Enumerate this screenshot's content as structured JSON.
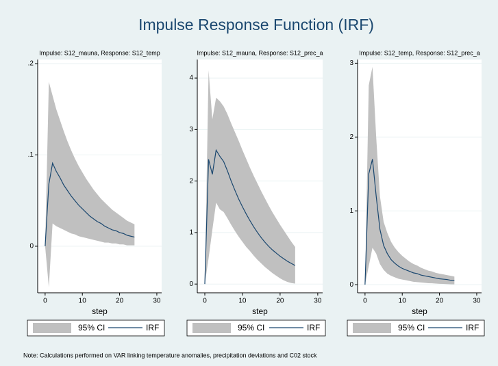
{
  "title": "Impulse Response Function (IRF)",
  "note": "Note: Calculations performed on VAR linking temperature anomalies, precipitation deviations and C02 stock",
  "chart_data": [
    {
      "type": "line",
      "subtitle": "Impulse: S12_mauna, Response: S12_temp",
      "x_label": "step",
      "x": [
        0,
        1,
        2,
        3,
        4,
        5,
        6,
        7,
        8,
        9,
        10,
        11,
        12,
        13,
        14,
        15,
        16,
        17,
        18,
        19,
        20,
        21,
        22,
        23,
        24
      ],
      "xlim": [
        -2,
        31.3
      ],
      "xticks": [
        0,
        10,
        20,
        30
      ],
      "ylim": [
        -0.051,
        0.2045
      ],
      "yticks": [
        0,
        {
          "value": 0.1,
          "label": ".1"
        },
        {
          "value": 0.2,
          "label": ".2"
        }
      ],
      "grid": true,
      "series": [
        {
          "name": "95% CI",
          "color": "#c0c0c0",
          "upper": [
            0,
            0.18,
            0.165,
            0.15,
            0.138,
            0.126,
            0.115,
            0.105,
            0.096,
            0.088,
            0.081,
            0.074,
            0.068,
            0.062,
            0.057,
            0.052,
            0.048,
            0.044,
            0.04,
            0.037,
            0.034,
            0.031,
            0.028,
            0.026,
            0.024
          ],
          "lower": [
            0,
            -0.045,
            0.025,
            0.022,
            0.02,
            0.018,
            0.016,
            0.014,
            0.013,
            0.011,
            0.01,
            0.009,
            0.008,
            0.007,
            0.006,
            0.005,
            0.004,
            0.004,
            0.003,
            0.003,
            0.002,
            0.002,
            0.001,
            0.001,
            0.001
          ]
        },
        {
          "name": "IRF",
          "color": "#1a476f",
          "values": [
            0,
            0.068,
            0.091,
            0.082,
            0.075,
            0.067,
            0.061,
            0.055,
            0.05,
            0.045,
            0.041,
            0.037,
            0.033,
            0.03,
            0.027,
            0.025,
            0.022,
            0.02,
            0.018,
            0.017,
            0.015,
            0.014,
            0.012,
            0.011,
            0.01
          ]
        }
      ]
    },
    {
      "type": "line",
      "subtitle": "Impulse: S12_mauna, Response: S12_prec_a",
      "x_label": "step",
      "x": [
        0,
        1,
        2,
        3,
        4,
        5,
        6,
        7,
        8,
        9,
        10,
        11,
        12,
        13,
        14,
        15,
        16,
        17,
        18,
        19,
        20,
        21,
        22,
        23,
        24
      ],
      "xlim": [
        -2,
        31.3
      ],
      "xticks": [
        0,
        10,
        20,
        30
      ],
      "ylim": [
        -0.17,
        4.36
      ],
      "yticks": [
        0,
        1,
        2,
        3,
        4
      ],
      "grid": true,
      "series": [
        {
          "name": "95% CI",
          "color": "#c0c0c0",
          "upper": [
            0,
            4.15,
            3.2,
            3.62,
            3.55,
            3.45,
            3.3,
            3.12,
            2.95,
            2.78,
            2.6,
            2.43,
            2.26,
            2.1,
            1.95,
            1.8,
            1.66,
            1.52,
            1.39,
            1.27,
            1.15,
            1.04,
            0.93,
            0.82,
            0.72
          ],
          "lower": [
            0,
            0.5,
            1.05,
            1.58,
            1.45,
            1.4,
            1.28,
            1.15,
            1.03,
            0.92,
            0.82,
            0.72,
            0.64,
            0.55,
            0.47,
            0.4,
            0.33,
            0.27,
            0.21,
            0.16,
            0.11,
            0.07,
            0.04,
            0.02,
            0.01
          ]
        },
        {
          "name": "IRF",
          "color": "#1a476f",
          "values": [
            0,
            2.42,
            2.13,
            2.6,
            2.48,
            2.38,
            2.2,
            2.0,
            1.82,
            1.65,
            1.5,
            1.36,
            1.23,
            1.11,
            1.0,
            0.9,
            0.81,
            0.73,
            0.66,
            0.6,
            0.54,
            0.49,
            0.44,
            0.4,
            0.36
          ]
        }
      ]
    },
    {
      "type": "line",
      "subtitle": "Impulse: S12_temp, Response: S12_prec_a",
      "x_label": "step",
      "x": [
        0,
        1,
        2,
        3,
        4,
        5,
        6,
        7,
        8,
        9,
        10,
        11,
        12,
        13,
        14,
        15,
        16,
        17,
        18,
        19,
        20,
        21,
        22,
        23,
        24
      ],
      "xlim": [
        -2,
        31.3
      ],
      "xticks": [
        0,
        10,
        20,
        30
      ],
      "ylim": [
        -0.11,
        3.05
      ],
      "yticks": [
        0,
        1,
        2,
        3
      ],
      "grid": true,
      "series": [
        {
          "name": "95% CI",
          "color": "#c0c0c0",
          "upper": [
            0,
            2.7,
            2.95,
            2.0,
            1.2,
            0.85,
            0.7,
            0.58,
            0.5,
            0.44,
            0.39,
            0.35,
            0.31,
            0.28,
            0.26,
            0.23,
            0.21,
            0.19,
            0.18,
            0.16,
            0.15,
            0.14,
            0.13,
            0.12,
            0.11
          ],
          "lower": [
            0,
            0.25,
            0.5,
            0.42,
            0.28,
            0.2,
            0.15,
            0.12,
            0.1,
            0.08,
            0.07,
            0.06,
            0.05,
            0.04,
            0.035,
            0.03,
            0.025,
            0.02,
            0.018,
            0.015,
            0.012,
            0.01,
            0.008,
            0.006,
            0.005
          ]
        },
        {
          "name": "IRF",
          "color": "#1a476f",
          "values": [
            0,
            1.5,
            1.7,
            1.2,
            0.75,
            0.53,
            0.42,
            0.34,
            0.29,
            0.25,
            0.22,
            0.2,
            0.18,
            0.16,
            0.15,
            0.13,
            0.12,
            0.11,
            0.1,
            0.09,
            0.08,
            0.075,
            0.07,
            0.06,
            0.055
          ]
        }
      ]
    }
  ]
}
